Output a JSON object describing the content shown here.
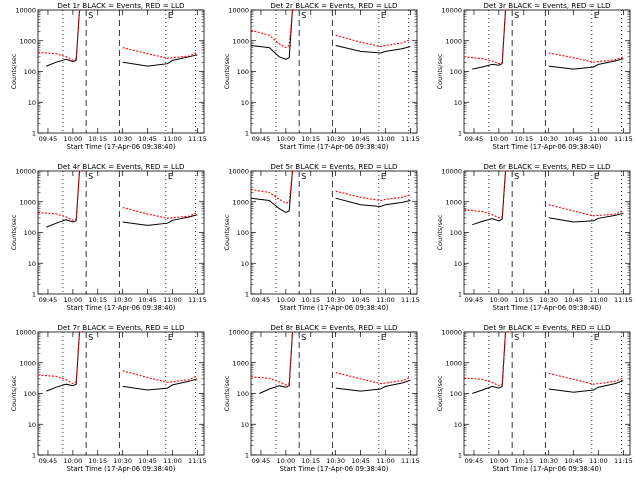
{
  "figure": {
    "ylabel": "Counts/sec",
    "xlabel": "Start Time (17-Apr-06 09:38:40)",
    "marker_start": "S",
    "marker_end": "E",
    "colors": {
      "events": "#000000",
      "lld": "#ff0000",
      "axes": "#000000"
    }
  },
  "chart_data": [
    {
      "type": "line",
      "title": "Det 1r BLACK = Events, RED = LLD",
      "xlabel": "Start Time (17-Apr-06 09:38:40)",
      "ylabel": "Counts/sec",
      "x_ticks": [
        "09:45",
        "10:00",
        "10:15",
        "10:30",
        "10:45",
        "11:00",
        "11:15"
      ],
      "y_ticks": [
        "1",
        "10",
        "100",
        "1000",
        "10000"
      ],
      "yscale": "log",
      "ylim": [
        1,
        10000
      ],
      "series": [
        {
          "name": "BLACK = Events",
          "color": "#000000",
          "x": [
            "09:44",
            "09:50",
            "09:56",
            "10:00",
            "10:02",
            "10:04",
            "10:06",
            "10:30",
            "10:45",
            "10:57",
            "11:00",
            "11:10",
            "11:15"
          ],
          "y": [
            150,
            200,
            250,
            210,
            230,
            10000,
            10000,
            200,
            150,
            180,
            230,
            300,
            350
          ]
        },
        {
          "name": "RED = LLD",
          "color": "#ff0000",
          "x": [
            "09:39",
            "09:50",
            "09:56",
            "10:00",
            "10:02",
            "10:04",
            "10:06",
            "10:30",
            "10:45",
            "10:57",
            "11:00",
            "11:10",
            "11:15"
          ],
          "y": [
            420,
            380,
            300,
            230,
            260,
            10000,
            10000,
            600,
            380,
            270,
            280,
            320,
            420
          ]
        }
      ]
    },
    {
      "type": "line",
      "title": "Det 2r BLACK = Events, RED = LLD",
      "xlabel": "Start Time (17-Apr-06 09:38:40)",
      "ylabel": "Counts/sec",
      "x_ticks": [
        "09:45",
        "10:00",
        "10:15",
        "10:30",
        "10:45",
        "11:00",
        "11:15"
      ],
      "y_ticks": [
        "1",
        "10",
        "100",
        "1000",
        "10000"
      ],
      "yscale": "log",
      "ylim": [
        1,
        10000
      ],
      "series": [
        {
          "name": "BLACK = Events",
          "color": "#000000",
          "x": [
            "09:39",
            "09:50",
            "09:56",
            "10:00",
            "10:02",
            "10:04",
            "10:06",
            "10:30",
            "10:45",
            "10:57",
            "11:00",
            "11:10",
            "11:15"
          ],
          "y": [
            700,
            600,
            300,
            250,
            280,
            10000,
            10000,
            700,
            450,
            400,
            450,
            550,
            650
          ]
        },
        {
          "name": "RED = LLD",
          "color": "#ff0000",
          "x": [
            "09:39",
            "09:50",
            "09:56",
            "10:00",
            "10:02",
            "10:04",
            "10:06",
            "10:30",
            "10:45",
            "10:57",
            "11:00",
            "11:10",
            "11:15"
          ],
          "y": [
            2200,
            1500,
            800,
            600,
            700,
            10000,
            10000,
            1500,
            900,
            650,
            700,
            850,
            1100
          ]
        }
      ]
    },
    {
      "type": "line",
      "title": "Det 3r BLACK = Events, RED = LLD",
      "xlabel": "Start Time (17-Apr-06 09:38:40)",
      "ylabel": "Counts/sec",
      "x_ticks": [
        "09:45",
        "10:00",
        "10:15",
        "10:30",
        "10:45",
        "11:00",
        "11:15"
      ],
      "y_ticks": [
        "1",
        "10",
        "100",
        "1000",
        "10000"
      ],
      "yscale": "log",
      "ylim": [
        1,
        10000
      ],
      "series": [
        {
          "name": "BLACK = Events",
          "color": "#000000",
          "x": [
            "09:44",
            "09:50",
            "09:56",
            "10:00",
            "10:02",
            "10:04",
            "10:06",
            "10:30",
            "10:45",
            "10:57",
            "11:00",
            "11:10",
            "11:15"
          ],
          "y": [
            120,
            140,
            170,
            160,
            180,
            10000,
            10000,
            150,
            120,
            140,
            170,
            220,
            260
          ]
        },
        {
          "name": "RED = LLD",
          "color": "#ff0000",
          "x": [
            "09:39",
            "09:50",
            "09:56",
            "10:00",
            "10:02",
            "10:04",
            "10:06",
            "10:30",
            "10:45",
            "10:57",
            "11:00",
            "11:10",
            "11:15"
          ],
          "y": [
            300,
            260,
            220,
            180,
            200,
            10000,
            10000,
            400,
            280,
            200,
            210,
            240,
            300
          ]
        }
      ]
    },
    {
      "type": "line",
      "title": "Det 4r BLACK = Events, RED = LLD",
      "xlabel": "Start Time (17-Apr-06 09:38:40)",
      "ylabel": "Counts/sec",
      "x_ticks": [
        "09:45",
        "10:00",
        "10:15",
        "10:30",
        "10:45",
        "11:00",
        "11:15"
      ],
      "y_ticks": [
        "1",
        "10",
        "100",
        "1000",
        "10000"
      ],
      "yscale": "log",
      "ylim": [
        1,
        10000
      ],
      "series": [
        {
          "name": "BLACK = Events",
          "color": "#000000",
          "x": [
            "09:44",
            "09:50",
            "09:56",
            "10:00",
            "10:02",
            "10:04",
            "10:06",
            "10:30",
            "10:45",
            "10:57",
            "11:00",
            "11:10",
            "11:15"
          ],
          "y": [
            150,
            200,
            260,
            220,
            240,
            10000,
            10000,
            220,
            170,
            200,
            250,
            320,
            380
          ]
        },
        {
          "name": "RED = LLD",
          "color": "#ff0000",
          "x": [
            "09:39",
            "09:50",
            "09:56",
            "10:00",
            "10:02",
            "10:04",
            "10:06",
            "10:30",
            "10:45",
            "10:57",
            "11:00",
            "11:10",
            "11:15"
          ],
          "y": [
            450,
            400,
            320,
            250,
            280,
            10000,
            10000,
            650,
            400,
            290,
            300,
            340,
            450
          ]
        }
      ]
    },
    {
      "type": "line",
      "title": "Det 5r BLACK = Events, RED = LLD",
      "xlabel": "Start Time (17-Apr-06 09:38:40)",
      "ylabel": "Counts/sec",
      "x_ticks": [
        "09:45",
        "10:00",
        "10:15",
        "10:30",
        "10:45",
        "11:00",
        "11:15"
      ],
      "y_ticks": [
        "1",
        "10",
        "100",
        "1000",
        "10000"
      ],
      "yscale": "log",
      "ylim": [
        1,
        10000
      ],
      "series": [
        {
          "name": "BLACK = Events",
          "color": "#000000",
          "x": [
            "09:39",
            "09:50",
            "09:56",
            "10:00",
            "10:02",
            "10:04",
            "10:06",
            "10:30",
            "10:45",
            "10:57",
            "11:00",
            "11:10",
            "11:15"
          ],
          "y": [
            1300,
            1100,
            600,
            450,
            500,
            10000,
            10000,
            1300,
            800,
            700,
            800,
            950,
            1100
          ]
        },
        {
          "name": "RED = LLD",
          "color": "#ff0000",
          "x": [
            "09:39",
            "09:50",
            "09:56",
            "10:00",
            "10:02",
            "10:04",
            "10:06",
            "10:30",
            "10:45",
            "10:57",
            "11:00",
            "11:10",
            "11:15"
          ],
          "y": [
            2500,
            2000,
            1200,
            900,
            1000,
            10000,
            10000,
            2200,
            1400,
            1100,
            1200,
            1400,
            1700
          ]
        }
      ]
    },
    {
      "type": "line",
      "title": "Det 6r BLACK = Events, RED = LLD",
      "xlabel": "Start Time (17-Apr-06 09:38:40)",
      "ylabel": "Counts/sec",
      "x_ticks": [
        "09:45",
        "10:00",
        "10:15",
        "10:30",
        "10:45",
        "11:00",
        "11:15"
      ],
      "y_ticks": [
        "1",
        "10",
        "100",
        "1000",
        "10000"
      ],
      "yscale": "log",
      "ylim": [
        1,
        10000
      ],
      "series": [
        {
          "name": "BLACK = Events",
          "color": "#000000",
          "x": [
            "09:44",
            "09:50",
            "09:56",
            "10:00",
            "10:02",
            "10:04",
            "10:06",
            "10:30",
            "10:45",
            "10:57",
            "11:00",
            "11:10",
            "11:15"
          ],
          "y": [
            180,
            230,
            280,
            240,
            270,
            10000,
            10000,
            300,
            220,
            240,
            290,
            360,
            420
          ]
        },
        {
          "name": "RED = LLD",
          "color": "#ff0000",
          "x": [
            "09:39",
            "09:50",
            "09:56",
            "10:00",
            "10:02",
            "10:04",
            "10:06",
            "10:30",
            "10:45",
            "10:57",
            "11:00",
            "11:10",
            "11:15"
          ],
          "y": [
            550,
            480,
            380,
            300,
            330,
            10000,
            10000,
            800,
            500,
            350,
            360,
            400,
            500
          ]
        }
      ]
    },
    {
      "type": "line",
      "title": "Det 7r BLACK = Events, RED = LLD",
      "xlabel": "Start Time (17-Apr-06 09:38:40)",
      "ylabel": "Counts/sec",
      "x_ticks": [
        "09:45",
        "10:00",
        "10:15",
        "10:30",
        "10:45",
        "11:00",
        "11:15"
      ],
      "y_ticks": [
        "1",
        "10",
        "100",
        "1000",
        "10000"
      ],
      "yscale": "log",
      "ylim": [
        1,
        10000
      ],
      "series": [
        {
          "name": "BLACK = Events",
          "color": "#000000",
          "x": [
            "09:44",
            "09:50",
            "09:56",
            "10:00",
            "10:02",
            "10:04",
            "10:06",
            "10:30",
            "10:45",
            "10:57",
            "11:00",
            "11:10",
            "11:15"
          ],
          "y": [
            120,
            160,
            200,
            180,
            200,
            10000,
            10000,
            170,
            130,
            150,
            190,
            250,
            300
          ]
        },
        {
          "name": "RED = LLD",
          "color": "#ff0000",
          "x": [
            "09:39",
            "09:50",
            "09:56",
            "10:00",
            "10:02",
            "10:04",
            "10:06",
            "10:30",
            "10:45",
            "10:57",
            "11:00",
            "11:10",
            "11:15"
          ],
          "y": [
            400,
            360,
            280,
            210,
            240,
            10000,
            10000,
            550,
            330,
            230,
            240,
            280,
            380
          ]
        }
      ]
    },
    {
      "type": "line",
      "title": "Det 8r BLACK = Events, RED = LLD",
      "xlabel": "Start Time (17-Apr-06 09:38:40)",
      "ylabel": "Counts/sec",
      "x_ticks": [
        "09:45",
        "10:00",
        "10:15",
        "10:30",
        "10:45",
        "11:00",
        "11:15"
      ],
      "y_ticks": [
        "1",
        "10",
        "100",
        "1000",
        "10000"
      ],
      "yscale": "log",
      "ylim": [
        1,
        10000
      ],
      "series": [
        {
          "name": "BLACK = Events",
          "color": "#000000",
          "x": [
            "09:44",
            "09:50",
            "09:56",
            "10:00",
            "10:02",
            "10:04",
            "10:06",
            "10:30",
            "10:45",
            "10:57",
            "11:00",
            "11:10",
            "11:15"
          ],
          "y": [
            100,
            140,
            180,
            160,
            180,
            10000,
            10000,
            150,
            120,
            140,
            170,
            220,
            270
          ]
        },
        {
          "name": "RED = LLD",
          "color": "#ff0000",
          "x": [
            "09:39",
            "09:50",
            "09:56",
            "10:00",
            "10:02",
            "10:04",
            "10:06",
            "10:30",
            "10:45",
            "10:57",
            "11:00",
            "11:10",
            "11:15"
          ],
          "y": [
            350,
            310,
            240,
            190,
            210,
            10000,
            10000,
            480,
            300,
            210,
            220,
            260,
            340
          ]
        }
      ]
    },
    {
      "type": "line",
      "title": "Det 9r BLACK = Events, RED = LLD",
      "xlabel": "Start Time (17-Apr-06 09:38:40)",
      "ylabel": "Counts/sec",
      "x_ticks": [
        "09:45",
        "10:00",
        "10:15",
        "10:30",
        "10:45",
        "11:00",
        "11:15"
      ],
      "y_ticks": [
        "1",
        "10",
        "100",
        "1000",
        "10000"
      ],
      "yscale": "log",
      "ylim": [
        1,
        10000
      ],
      "series": [
        {
          "name": "BLACK = Events",
          "color": "#000000",
          "x": [
            "09:44",
            "09:50",
            "09:56",
            "10:00",
            "10:02",
            "10:04",
            "10:06",
            "10:30",
            "10:45",
            "10:57",
            "11:00",
            "11:10",
            "11:15"
          ],
          "y": [
            100,
            130,
            170,
            150,
            170,
            10000,
            10000,
            140,
            110,
            130,
            160,
            210,
            260
          ]
        },
        {
          "name": "RED = LLD",
          "color": "#ff0000",
          "x": [
            "09:39",
            "09:50",
            "09:56",
            "10:00",
            "10:02",
            "10:04",
            "10:06",
            "10:30",
            "10:45",
            "10:57",
            "11:00",
            "11:10",
            "11:15"
          ],
          "y": [
            320,
            290,
            230,
            180,
            200,
            10000,
            10000,
            450,
            290,
            200,
            210,
            250,
            320
          ]
        }
      ]
    }
  ]
}
